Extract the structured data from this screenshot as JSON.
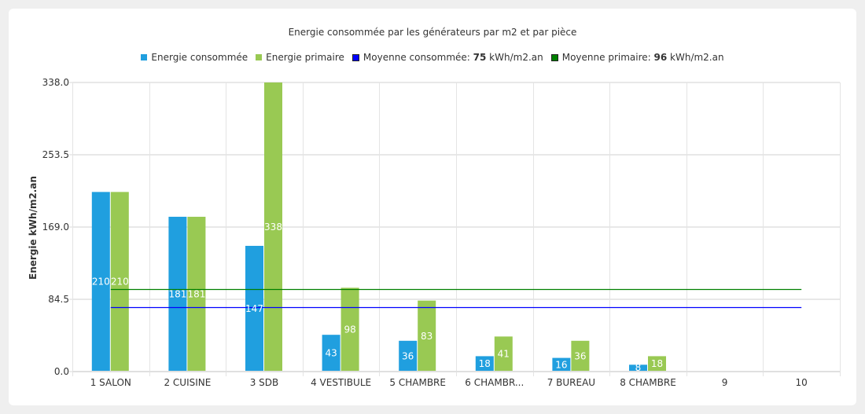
{
  "chart_data": {
    "type": "bar",
    "title": "Energie consommée par les générateurs par m2 et par pièce",
    "xlabel": "",
    "ylabel": "Energie kWh/m2.an",
    "ylim": [
      0,
      338
    ],
    "yticks": [
      "0.0",
      "84.5",
      "169.0",
      "253.5",
      "338.0"
    ],
    "grid": true,
    "legend_position": "top",
    "categories": [
      "1 SALON",
      "2 CUISINE",
      "3 SDB",
      "4 VESTIBULE",
      "5 CHAMBRE",
      "6 CHAMBR...",
      "7 BUREAU",
      "8 CHAMBRE",
      "9",
      "10"
    ],
    "series": [
      {
        "name": "Energie consommée",
        "color": "#209fdf",
        "values": [
          210,
          181,
          147,
          43,
          36,
          18,
          16,
          8,
          null,
          null
        ]
      },
      {
        "name": "Energie primaire",
        "color": "#99c953",
        "values": [
          210,
          181,
          338,
          98,
          83,
          41,
          36,
          18,
          null,
          null
        ]
      }
    ],
    "lines": [
      {
        "name": "Moyenne consommée",
        "value": 75,
        "unit": "kWh/m2.an",
        "color": "#0000ff"
      },
      {
        "name": "Moyenne primaire",
        "value": 96,
        "unit": "kWh/m2.an",
        "color": "#008000"
      }
    ]
  },
  "legend": {
    "items": [
      {
        "label": "Energie consommée",
        "color": "#209fdf"
      },
      {
        "label": "Energie primaire",
        "color": "#99c953"
      },
      {
        "prefix": "Moyenne consommée: ",
        "value": "75",
        "suffix": " kWh/m2.an",
        "color": "#0000ff"
      },
      {
        "prefix": "Moyenne primaire: ",
        "value": "96",
        "suffix": " kWh/m2.an",
        "color": "#008000"
      }
    ]
  }
}
